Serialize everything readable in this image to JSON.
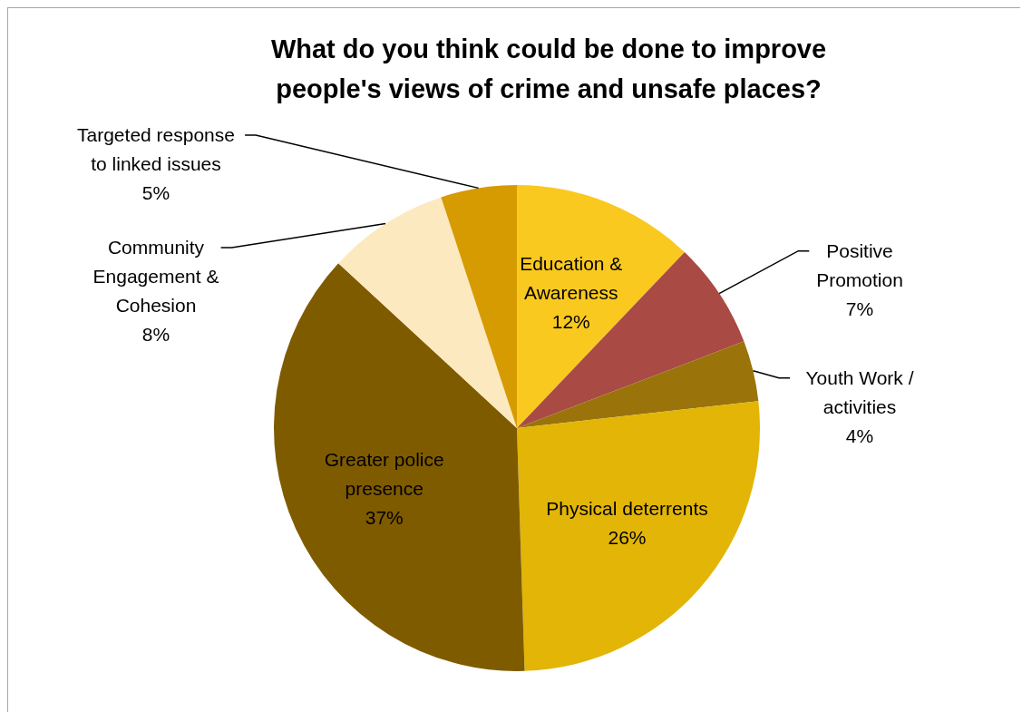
{
  "chart_data": {
    "type": "pie",
    "title": "What do you think could be done to improve people's views of crime and unsafe places?",
    "categories": [
      "Education & Awareness",
      "Positive Promotion",
      "Youth Work  / activities",
      "Physical deterrents",
      "Greater police presence",
      "Community Engagement & Cohesion",
      "Targeted response to linked issues"
    ],
    "values": [
      12,
      7,
      4,
      26,
      37,
      8,
      5
    ],
    "colors": [
      "#f9c920",
      "#a94a45",
      "#9a740b",
      "#e2b507",
      "#7f5b00",
      "#fde9c0",
      "#d69b00"
    ],
    "value_labels": [
      "12%",
      "7%",
      "4%",
      "26%",
      "37%",
      "8%",
      "5%"
    ]
  }
}
